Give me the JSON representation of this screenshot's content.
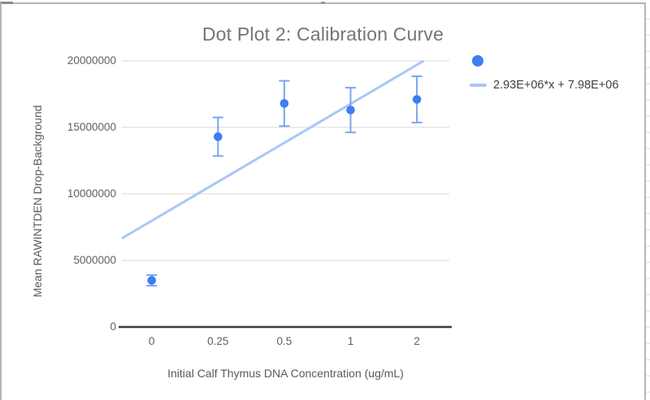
{
  "window": {
    "background": "#ffffff",
    "frame_border_color": "#b5b5b5",
    "spreadsheet_row_line_color": "#e7e7e7"
  },
  "chart_data": {
    "type": "scatter",
    "title": "Dot Plot 2: Calibration Curve",
    "xlabel": "Initial Calf Thymus DNA Concentration (ug/mL)",
    "ylabel": "Mean RAWINTDEN Drop-Background",
    "categories": [
      "0",
      "0.25",
      "0.5",
      "1",
      "2"
    ],
    "yticks": [
      0,
      5000000,
      10000000,
      15000000,
      20000000
    ],
    "ylim": [
      0,
      20000000
    ],
    "grid": "horizontal",
    "gridline_color": "#d8d8d8",
    "axis_line_color": "#3c3c3c",
    "legend_position": "top-right",
    "series": {
      "color": "#3d7ef0",
      "error_bar_color": "#7aa5f0",
      "points": [
        {
          "x": "0",
          "y": 3500000,
          "error": 400000
        },
        {
          "x": "0.25",
          "y": 14300000,
          "error": 1450000
        },
        {
          "x": "0.5",
          "y": 16800000,
          "error": 1700000
        },
        {
          "x": "1",
          "y": 16300000,
          "error": 1680000
        },
        {
          "x": "2",
          "y": 17100000,
          "error": 1740000
        }
      ]
    },
    "trendline": {
      "label": "2.93E+06*x + 7.98E+06",
      "slope_per_category_index": 2930000,
      "intercept": 7980000,
      "color": "#a9c6f8"
    }
  }
}
